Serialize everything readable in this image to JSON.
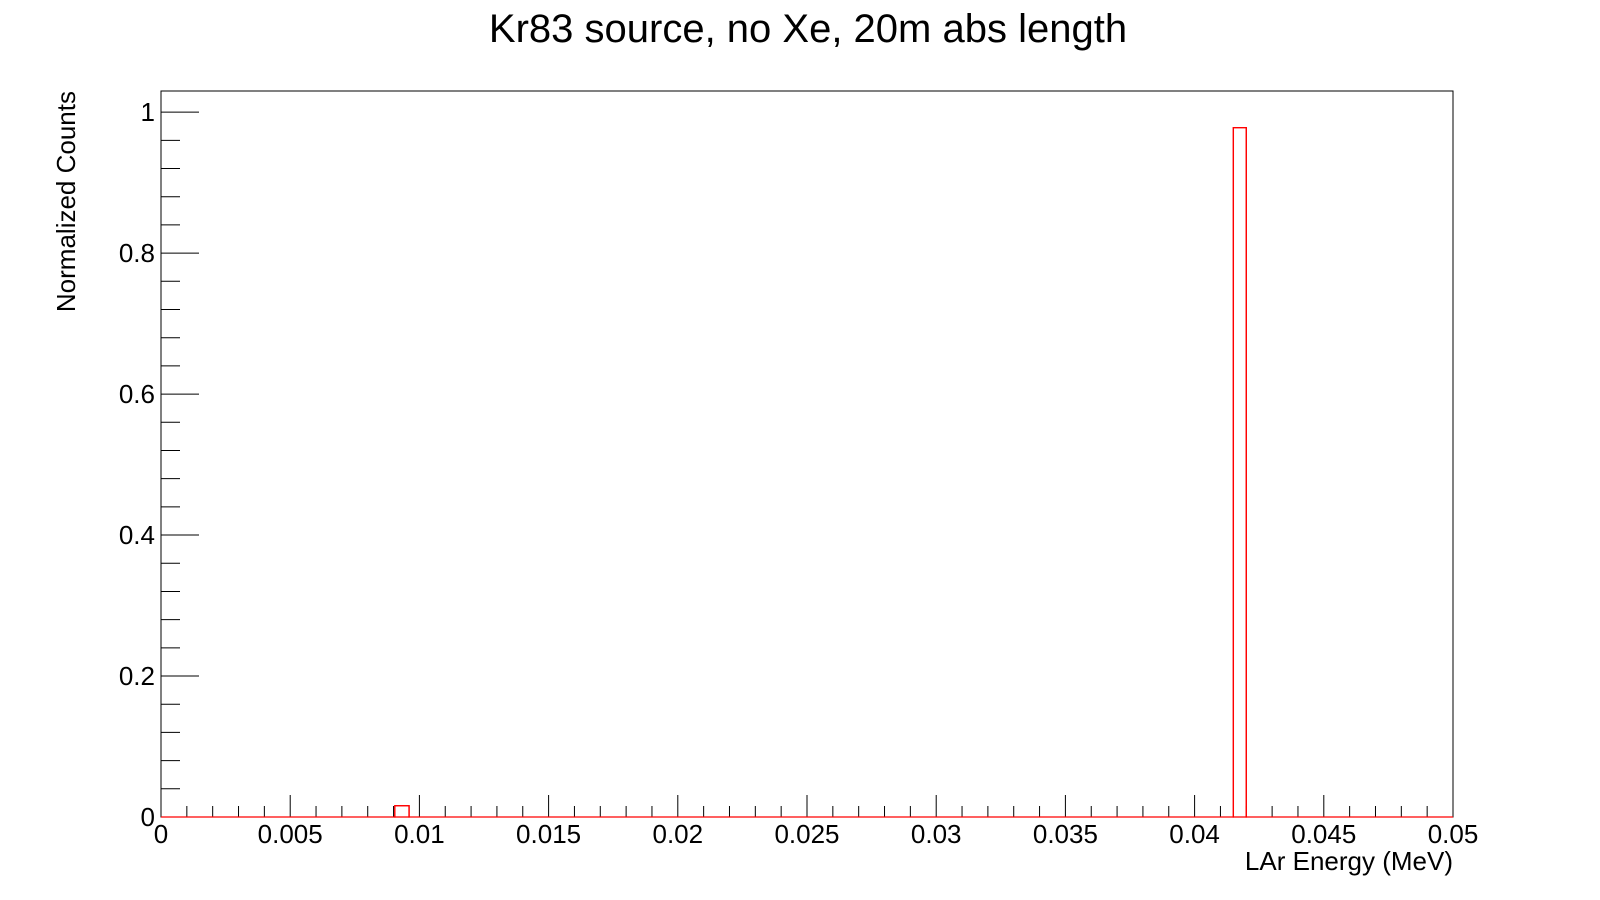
{
  "chart_data": {
    "type": "bar",
    "title": "Kr83 source, no Xe, 20m abs length",
    "xlabel": "LAr Energy (MeV)",
    "ylabel": "Normalized Counts",
    "xlim": [
      0,
      0.05
    ],
    "ylim": [
      0,
      1.03
    ],
    "x_ticks": [
      0,
      0.005,
      0.01,
      0.015,
      0.02,
      0.025,
      0.03,
      0.035,
      0.04,
      0.045,
      0.05
    ],
    "x_tick_labels": [
      "0",
      "0.005",
      "0.01",
      "0.015",
      "0.02",
      "0.025",
      "0.03",
      "0.035",
      "0.04",
      "0.045",
      "0.05"
    ],
    "y_ticks": [
      0,
      0.2,
      0.4,
      0.6,
      0.8,
      1
    ],
    "y_tick_labels": [
      "0",
      "0.2",
      "0.4",
      "0.6",
      "0.8",
      "1"
    ],
    "grid": false,
    "legend": "none",
    "series": [
      {
        "color": "#ff0000",
        "bins": [
          {
            "x_low": 0.00905,
            "x_high": 0.0096,
            "value": 0.016
          },
          {
            "x_low": 0.0415,
            "x_high": 0.042,
            "value": 0.978
          }
        ]
      }
    ]
  }
}
